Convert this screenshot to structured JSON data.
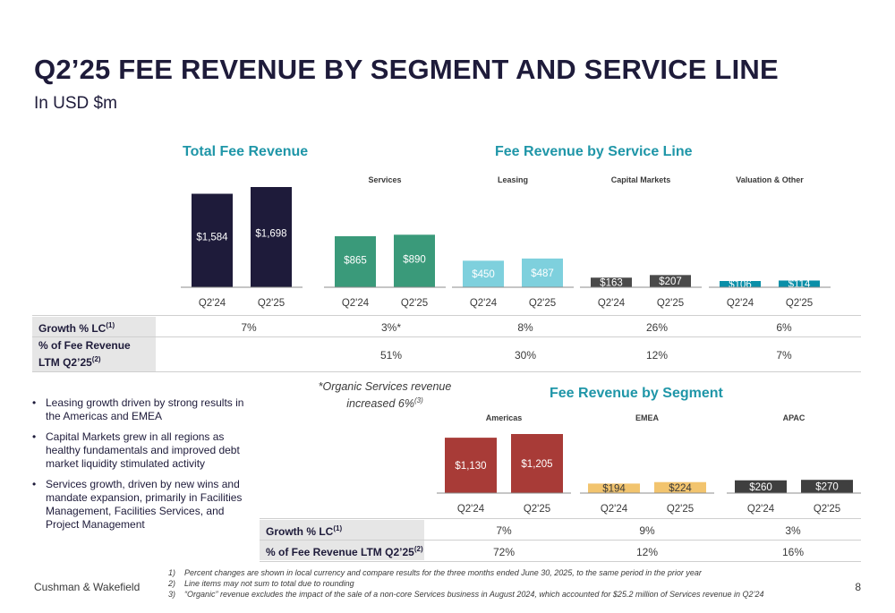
{
  "title": "Q2’25 FEE REVENUE BY SEGMENT AND SERVICE LINE",
  "subtitle": "In USD $m",
  "headings": {
    "total": "Total Fee Revenue",
    "service_line": "Fee Revenue by Service Line",
    "segment": "Fee Revenue by Segment"
  },
  "colors": {
    "total": "#1e1b3a",
    "services": "#3a9a7a",
    "leasing": "#7ed0dd",
    "capital_markets": "#4a4a4a",
    "valuation": "#0a8fa8",
    "americas": "#a83b37",
    "emea": "#f2c46e",
    "apac": "#3f3f3f",
    "heading": "#1f96a8"
  },
  "chart_data": [
    {
      "type": "bar",
      "title": "Total Fee Revenue",
      "categories": [
        "Q2'24",
        "Q2'25"
      ],
      "series": [
        {
          "values": [
            1584,
            1698
          ]
        }
      ],
      "value_labels": [
        "$1,584",
        "$1,698"
      ]
    },
    {
      "type": "bar",
      "title": "Services",
      "categories": [
        "Q2'24",
        "Q2'25"
      ],
      "series": [
        {
          "values": [
            865,
            890
          ]
        }
      ],
      "value_labels": [
        "$865",
        "$890"
      ]
    },
    {
      "type": "bar",
      "title": "Leasing",
      "categories": [
        "Q2'24",
        "Q2'25"
      ],
      "series": [
        {
          "values": [
            450,
            487
          ]
        }
      ],
      "value_labels": [
        "$450",
        "$487"
      ]
    },
    {
      "type": "bar",
      "title": "Capital Markets",
      "categories": [
        "Q2'24",
        "Q2'25"
      ],
      "series": [
        {
          "values": [
            163,
            207
          ]
        }
      ],
      "value_labels": [
        "$163",
        "$207"
      ]
    },
    {
      "type": "bar",
      "title": "Valuation & Other",
      "categories": [
        "Q2'24",
        "Q2'25"
      ],
      "series": [
        {
          "values": [
            106,
            114
          ]
        }
      ],
      "value_labels": [
        "$106",
        "$114"
      ]
    },
    {
      "type": "bar",
      "title": "Americas",
      "categories": [
        "Q2'24",
        "Q2'25"
      ],
      "series": [
        {
          "values": [
            1130,
            1205
          ]
        }
      ],
      "value_labels": [
        "$1,130",
        "$1,205"
      ]
    },
    {
      "type": "bar",
      "title": "EMEA",
      "categories": [
        "Q2'24",
        "Q2'25"
      ],
      "series": [
        {
          "values": [
            194,
            224
          ]
        }
      ],
      "value_labels": [
        "$194",
        "$224"
      ]
    },
    {
      "type": "bar",
      "title": "APAC",
      "categories": [
        "Q2'24",
        "Q2'25"
      ],
      "series": [
        {
          "values": [
            260,
            270
          ]
        }
      ],
      "value_labels": [
        "$260",
        "$270"
      ]
    }
  ],
  "top_table": {
    "growth_label": "Growth % LC",
    "growth_sup": "(1)",
    "share_label_line1": "% of Fee Revenue",
    "share_label_line2": "LTM Q2’25",
    "share_sup": "(2)",
    "growth": [
      "7%",
      "3%*",
      "8%",
      "26%",
      "6%"
    ],
    "share": [
      "51%",
      "30%",
      "12%",
      "7%"
    ]
  },
  "bottom_table": {
    "growth_label": "Growth % LC",
    "growth_sup": "(1)",
    "share_label": "% of Fee Revenue LTM Q2’25",
    "share_sup": "(2)",
    "growth": [
      "7%",
      "9%",
      "3%"
    ],
    "share": [
      "72%",
      "12%",
      "16%"
    ]
  },
  "note_line1": "*Organic Services revenue",
  "note_line2": "increased 6%",
  "note_sup": "(3)",
  "bullets": [
    "Leasing growth driven by strong results in the Americas and EMEA",
    "Capital Markets grew in all regions as healthy fundamentals and improved debt market liquidity stimulated activity",
    "Services growth, driven by new wins and mandate expansion, primarily in Facilities Management, Facilities Services, and Project Management"
  ],
  "footnotes": [
    {
      "num": "1)",
      "text": "Percent changes are shown in local currency and compare results for the three months ended June 30, 2025, to the same period in the prior year"
    },
    {
      "num": "2)",
      "text": "Line items may not sum to total due to rounding"
    },
    {
      "num": "3)",
      "text": "“Organic” revenue excludes the impact of the sale of a non-core Services business in August 2024, which accounted for $25.2 million of Services revenue in Q2’24"
    }
  ],
  "footer": "Cushman & Wakefield",
  "page_number": "8"
}
